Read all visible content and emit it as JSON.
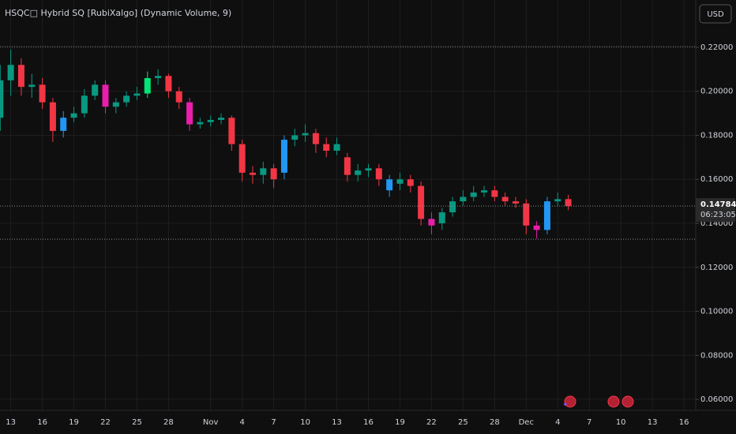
{
  "chart_data": {
    "type": "candlestick",
    "title": "HSQC□ Hybrid SQ [RubiXalgo] (Dynamic Volume, 9)",
    "currency_button": "USD",
    "countdown": "06:23:05",
    "last_price": {
      "value": 0.14784,
      "label": "0.14784"
    },
    "level_lines": [
      0.2203,
      0.1328
    ],
    "categories": [
      null,
      "13",
      null,
      null,
      "16",
      null,
      null,
      "19",
      null,
      null,
      "22",
      null,
      null,
      "25",
      null,
      null,
      "28",
      null,
      null,
      null,
      "Nov",
      null,
      null,
      "4",
      null,
      null,
      "7",
      null,
      null,
      "10",
      null,
      null,
      "13",
      null,
      null,
      "16",
      null,
      null,
      "19",
      null,
      null,
      "22",
      null,
      null,
      "25",
      null,
      null,
      "28",
      null,
      null,
      "Dec",
      null,
      null,
      "4",
      null,
      null,
      "7",
      null,
      null,
      "10",
      null,
      null,
      "13",
      null,
      null,
      "16"
    ],
    "open": [
      0.188,
      0.205,
      0.212,
      0.202,
      0.203,
      0.195,
      0.182,
      0.188,
      0.19,
      0.198,
      0.203,
      0.193,
      0.195,
      0.198,
      0.199,
      0.206,
      0.207,
      0.2,
      0.195,
      0.185,
      0.186,
      0.187,
      0.188,
      0.176,
      0.163,
      0.162,
      0.165,
      0.163,
      0.178,
      0.18,
      0.181,
      0.176,
      0.173,
      0.17,
      0.162,
      0.164,
      0.165,
      0.16,
      0.158,
      0.16,
      0.157,
      0.142,
      0.14,
      0.145,
      0.15,
      0.152,
      0.154,
      0.155,
      0.152,
      0.15,
      0.149,
      0.139,
      0.137,
      0.15,
      0.151,
      null,
      null,
      null,
      null,
      null,
      null,
      null,
      null,
      null,
      null,
      null
    ],
    "high": [
      0.212,
      0.219,
      0.215,
      0.208,
      0.206,
      0.197,
      0.191,
      0.193,
      0.201,
      0.205,
      0.205,
      0.197,
      0.2,
      0.202,
      0.209,
      0.21,
      0.208,
      0.202,
      0.197,
      0.188,
      0.189,
      0.19,
      0.189,
      0.178,
      0.166,
      0.168,
      0.167,
      0.18,
      0.183,
      0.185,
      0.183,
      0.179,
      0.179,
      0.172,
      0.167,
      0.167,
      0.167,
      0.162,
      0.163,
      0.162,
      0.159,
      0.145,
      0.147,
      0.152,
      0.155,
      0.157,
      0.157,
      0.157,
      0.154,
      0.152,
      0.151,
      0.141,
      0.152,
      0.154,
      0.153,
      null,
      null,
      null,
      null,
      null,
      null,
      null,
      null,
      null,
      null,
      null
    ],
    "low": [
      0.182,
      0.198,
      0.198,
      0.197,
      0.192,
      0.177,
      0.179,
      0.186,
      0.188,
      0.196,
      0.19,
      0.19,
      0.193,
      0.196,
      0.197,
      0.203,
      0.197,
      0.192,
      0.182,
      0.183,
      0.184,
      0.185,
      0.173,
      0.159,
      0.158,
      0.158,
      0.156,
      0.16,
      0.175,
      0.177,
      0.172,
      0.17,
      0.171,
      0.159,
      0.159,
      0.161,
      0.157,
      0.152,
      0.155,
      0.154,
      0.139,
      0.135,
      0.137,
      0.143,
      0.148,
      0.15,
      0.152,
      0.15,
      0.148,
      0.147,
      0.135,
      0.133,
      0.135,
      0.148,
      0.146,
      null,
      null,
      null,
      null,
      null,
      null,
      null,
      null,
      null,
      null,
      null
    ],
    "close": [
      0.205,
      0.212,
      0.202,
      0.203,
      0.195,
      0.182,
      0.188,
      0.19,
      0.198,
      0.203,
      0.193,
      0.195,
      0.198,
      0.199,
      0.206,
      0.207,
      0.2,
      0.195,
      0.185,
      0.186,
      0.187,
      0.188,
      0.176,
      0.163,
      0.162,
      0.165,
      0.16,
      0.178,
      0.18,
      0.181,
      0.176,
      0.173,
      0.176,
      0.162,
      0.164,
      0.165,
      0.16,
      0.155,
      0.16,
      0.157,
      0.142,
      0.139,
      0.145,
      0.15,
      0.152,
      0.154,
      0.155,
      0.152,
      0.15,
      0.149,
      0.139,
      0.137,
      0.15,
      0.151,
      0.14784,
      null,
      null,
      null,
      null,
      null,
      null,
      null,
      null,
      null,
      null,
      null
    ],
    "colors": [
      "#089981",
      "#089981",
      "#f23645",
      "#089981",
      "#f23645",
      "#f23645",
      "#2196f3",
      "#089981",
      "#089981",
      "#089981",
      "#e91eaa",
      "#089981",
      "#089981",
      "#089981",
      "#00e676",
      "#089981",
      "#f23645",
      "#f23645",
      "#e91eaa",
      "#089981",
      "#089981",
      "#089981",
      "#f23645",
      "#f23645",
      "#f23645",
      "#089981",
      "#f23645",
      "#2196f3",
      "#089981",
      "#089981",
      "#f23645",
      "#f23645",
      "#089981",
      "#f23645",
      "#089981",
      "#089981",
      "#f23645",
      "#2196f3",
      "#089981",
      "#f23645",
      "#f23645",
      "#e91eaa",
      "#089981",
      "#089981",
      "#089981",
      "#089981",
      "#089981",
      "#f23645",
      "#f23645",
      "#f23645",
      "#f23645",
      "#e91eaa",
      "#2196f3",
      "#089981",
      "#f23645",
      null,
      null,
      null,
      null,
      null,
      null,
      null,
      null,
      null,
      null,
      null
    ],
    "ylim": [
      0.055,
      0.2415
    ],
    "yticks": [
      {
        "value": 0.06,
        "label": "0.06000"
      },
      {
        "value": 0.08,
        "label": "0.08000"
      },
      {
        "value": 0.1,
        "label": "0.10000"
      },
      {
        "value": 0.12,
        "label": "0.12000"
      },
      {
        "value": 0.14,
        "label": "0.14000"
      },
      {
        "value": 0.16,
        "label": "0.16000"
      },
      {
        "value": 0.18,
        "label": "0.18000"
      },
      {
        "value": 0.2,
        "label": "0.20000"
      },
      {
        "value": 0.22,
        "label": "0.22000"
      }
    ],
    "grid": true
  }
}
